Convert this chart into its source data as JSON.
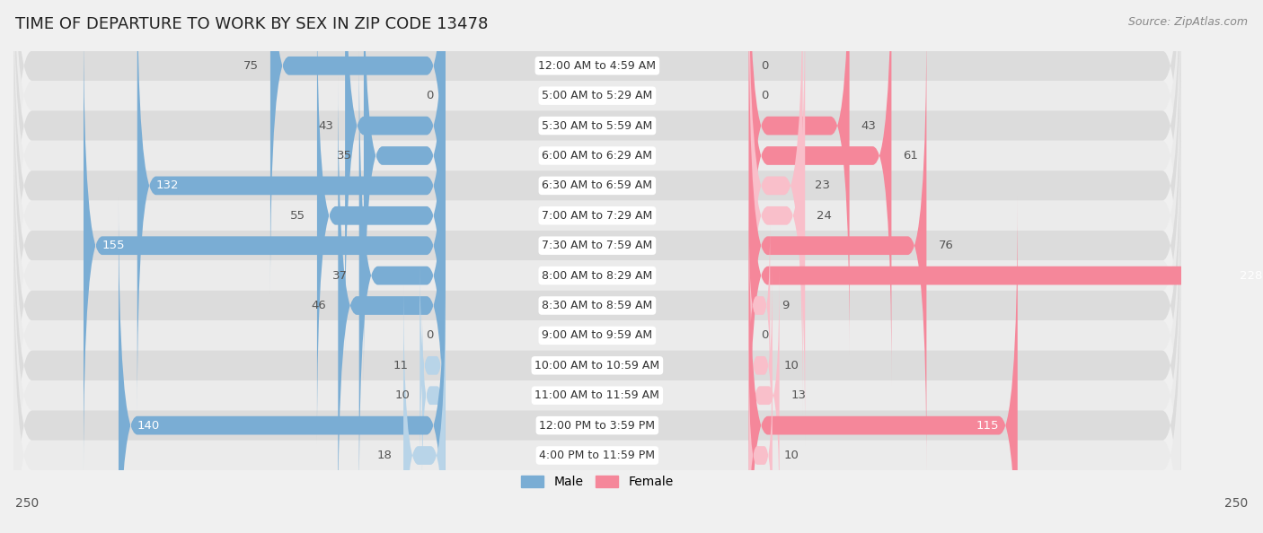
{
  "title": "TIME OF DEPARTURE TO WORK BY SEX IN ZIP CODE 13478",
  "source": "Source: ZipAtlas.com",
  "categories": [
    "12:00 AM to 4:59 AM",
    "5:00 AM to 5:29 AM",
    "5:30 AM to 5:59 AM",
    "6:00 AM to 6:29 AM",
    "6:30 AM to 6:59 AM",
    "7:00 AM to 7:29 AM",
    "7:30 AM to 7:59 AM",
    "8:00 AM to 8:29 AM",
    "8:30 AM to 8:59 AM",
    "9:00 AM to 9:59 AM",
    "10:00 AM to 10:59 AM",
    "11:00 AM to 11:59 AM",
    "12:00 PM to 3:59 PM",
    "4:00 PM to 11:59 PM"
  ],
  "male": [
    75,
    0,
    43,
    35,
    132,
    55,
    155,
    37,
    46,
    0,
    11,
    10,
    140,
    18
  ],
  "female": [
    0,
    0,
    43,
    61,
    23,
    24,
    76,
    228,
    9,
    0,
    10,
    13,
    115,
    10
  ],
  "male_color": "#7aadd4",
  "female_color": "#f5879a",
  "male_color_light": "#b8d4e8",
  "female_color_light": "#f9bfca",
  "axis_limit": 250,
  "bg_color": "#f0f0f0",
  "row_dark_color": "#dcdcdc",
  "row_light_color": "#ebebeb",
  "label_fontsize": 9.5,
  "title_fontsize": 13,
  "category_fontsize": 9,
  "source_fontsize": 9
}
